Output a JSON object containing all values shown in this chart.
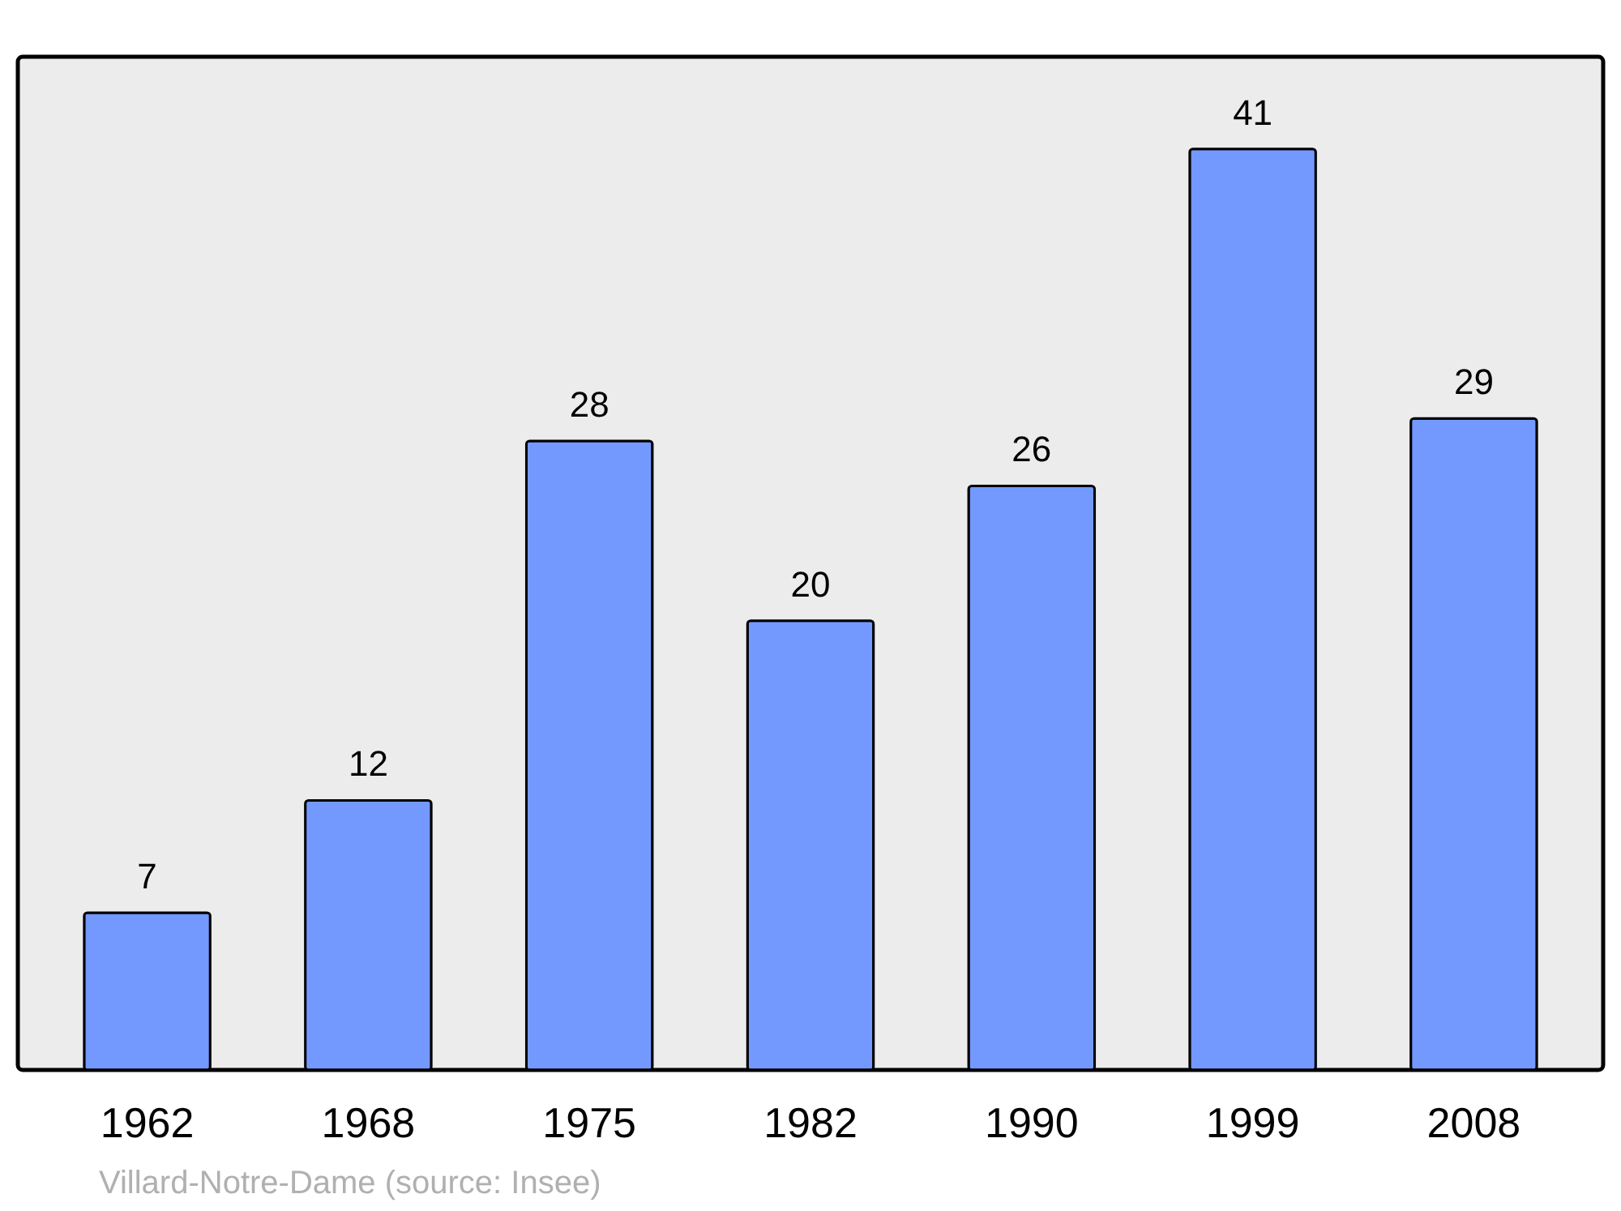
{
  "chart_data": {
    "type": "bar",
    "categories": [
      "1962",
      "1968",
      "1975",
      "1982",
      "1990",
      "1999",
      "2008"
    ],
    "values": [
      7,
      12,
      28,
      20,
      26,
      41,
      29
    ],
    "color": "#7399ff",
    "data_labels": true,
    "grid": false,
    "tick_labels": "x",
    "annotations": [
      "Villard-Notre-Dame    (source: Insee)"
    ]
  }
}
